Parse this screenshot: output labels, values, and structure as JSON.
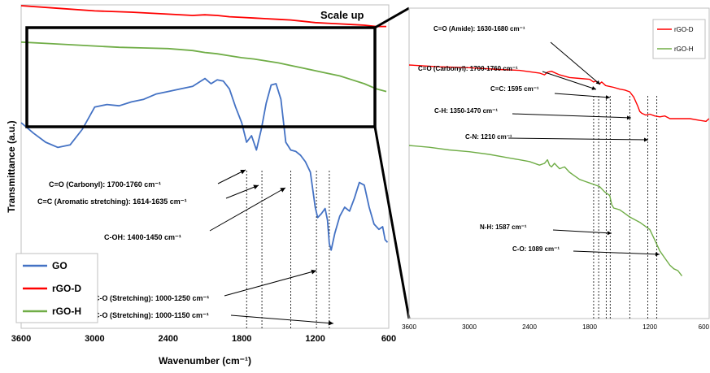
{
  "chart_data": [
    {
      "type": "line",
      "panel": "main",
      "xlabel": "Wavenumber (cm⁻¹)",
      "ylabel": "Transmittance (a.u.)",
      "xlim": [
        3600,
        600
      ],
      "x_ticks": [
        "3600",
        "3000",
        "2400",
        "1800",
        "1200",
        "600"
      ],
      "legend_position": "bottom-left",
      "series": [
        {
          "name": "GO",
          "color": "#4472C4",
          "x": [
            3600,
            3500,
            3400,
            3300,
            3200,
            3100,
            3000,
            2900,
            2800,
            2700,
            2600,
            2500,
            2400,
            2300,
            2200,
            2150,
            2100,
            2050,
            2000,
            1950,
            1900,
            1850,
            1800,
            1760,
            1720,
            1680,
            1640,
            1600,
            1560,
            1520,
            1480,
            1440,
            1400,
            1360,
            1320,
            1280,
            1240,
            1200,
            1180,
            1150,
            1120,
            1100,
            1085,
            1070,
            1040,
            1000,
            960,
            920,
            880,
            840,
            800,
            760,
            720,
            680,
            650,
            630,
            610
          ],
          "y": [
            0.4,
            0.32,
            0.25,
            0.21,
            0.23,
            0.35,
            0.52,
            0.54,
            0.53,
            0.56,
            0.58,
            0.62,
            0.64,
            0.66,
            0.68,
            0.71,
            0.74,
            0.7,
            0.73,
            0.72,
            0.66,
            0.52,
            0.4,
            0.25,
            0.3,
            0.19,
            0.35,
            0.55,
            0.69,
            0.7,
            0.58,
            0.25,
            0.19,
            0.18,
            0.15,
            0.1,
            0.02,
            -0.25,
            -0.33,
            -0.3,
            -0.26,
            -0.35,
            -0.53,
            -0.58,
            -0.45,
            -0.32,
            -0.25,
            -0.28,
            -0.18,
            -0.06,
            -0.08,
            -0.25,
            -0.38,
            -0.42,
            -0.4,
            -0.5,
            -0.52
          ]
        },
        {
          "name": "rGO-D",
          "color": "#FF0000",
          "x": [
            3600,
            3300,
            3000,
            2700,
            2400,
            2200,
            2100,
            2000,
            1900,
            1800,
            1700,
            1600,
            1500,
            1400,
            1300,
            1200,
            1100,
            1000,
            900,
            800,
            700,
            620
          ],
          "y": [
            1.3,
            1.28,
            1.26,
            1.25,
            1.235,
            1.225,
            1.23,
            1.225,
            1.215,
            1.21,
            1.205,
            1.2,
            1.195,
            1.19,
            1.18,
            1.17,
            1.165,
            1.16,
            1.155,
            1.15,
            1.14,
            1.14
          ]
        },
        {
          "name": "rGO-H",
          "color": "#70AD47",
          "x": [
            3600,
            3400,
            3200,
            3000,
            2800,
            2600,
            2400,
            2200,
            2100,
            2000,
            1900,
            1800,
            1700,
            1600,
            1500,
            1400,
            1300,
            1200,
            1100,
            1000,
            900,
            800,
            700,
            620
          ],
          "y": [
            1.02,
            1.01,
            1.0,
            0.99,
            0.98,
            0.975,
            0.97,
            0.955,
            0.94,
            0.93,
            0.915,
            0.9,
            0.89,
            0.875,
            0.86,
            0.84,
            0.82,
            0.8,
            0.78,
            0.76,
            0.73,
            0.7,
            0.66,
            0.64
          ]
        }
      ],
      "annotations": [
        {
          "text": "C=O (Carbonyl): 1700-1760 cm⁻¹",
          "wavenumber": 1730
        },
        {
          "text": "C=C (Aromatic stretching): 1614-1635 cm⁻¹",
          "wavenumber": 1625
        },
        {
          "text": "C-OH: 1400-1450 cm⁻¹",
          "wavenumber": 1425
        },
        {
          "text": "C-O (Stretching): 1000-1250 cm⁻¹",
          "wavenumber": 1180
        },
        {
          "text": "C-O (Stretching): 1000-1150 cm⁻¹",
          "wavenumber": 1090
        }
      ],
      "scale_label": "Scale up"
    },
    {
      "type": "line",
      "panel": "inset",
      "xlim": [
        3600,
        600
      ],
      "x_ticks": [
        "3600",
        "3000",
        "2400",
        "1800",
        "1200",
        "600"
      ],
      "legend_position": "top-right",
      "series": [
        {
          "name": "rGO-D",
          "color": "#FF0000",
          "x": [
            3600,
            3300,
            3000,
            2700,
            2500,
            2300,
            2250,
            2220,
            2180,
            2100,
            2000,
            1900,
            1800,
            1760,
            1740,
            1700,
            1680,
            1640,
            1600,
            1560,
            1500,
            1450,
            1400,
            1360,
            1320,
            1300,
            1280,
            1240,
            1200,
            1150,
            1100,
            1050,
            1000,
            900,
            800,
            700,
            640,
            610
          ],
          "y": [
            1.0,
            0.99,
            0.985,
            0.975,
            0.97,
            0.955,
            0.945,
            0.96,
            0.965,
            0.945,
            0.93,
            0.925,
            0.92,
            0.905,
            0.91,
            0.895,
            0.905,
            0.885,
            0.88,
            0.875,
            0.865,
            0.86,
            0.85,
            0.82,
            0.77,
            0.74,
            0.73,
            0.72,
            0.725,
            0.715,
            0.71,
            0.715,
            0.7,
            0.7,
            0.7,
            0.69,
            0.685,
            0.7
          ]
        },
        {
          "name": "rGO-H",
          "color": "#70AD47",
          "x": [
            3600,
            3400,
            3200,
            3000,
            2800,
            2600,
            2500,
            2400,
            2300,
            2250,
            2220,
            2200,
            2180,
            2150,
            2100,
            2050,
            2000,
            1950,
            1900,
            1850,
            1800,
            1750,
            1700,
            1650,
            1600,
            1580,
            1560,
            1500,
            1450,
            1400,
            1300,
            1200,
            1150,
            1100,
            1050,
            1000,
            960,
            920,
            880
          ],
          "y": [
            0.55,
            0.54,
            0.525,
            0.515,
            0.5,
            0.48,
            0.47,
            0.46,
            0.44,
            0.45,
            0.47,
            0.44,
            0.43,
            0.45,
            0.42,
            0.43,
            0.4,
            0.38,
            0.36,
            0.35,
            0.34,
            0.33,
            0.32,
            0.29,
            0.27,
            0.22,
            0.2,
            0.19,
            0.17,
            0.15,
            0.12,
            0.08,
            0.02,
            -0.04,
            -0.08,
            -0.12,
            -0.14,
            -0.15,
            -0.18
          ]
        }
      ],
      "annotations": [
        {
          "text": "C=O (Amide): 1630-1680 cm⁻¹",
          "wavenumber": 1655
        },
        {
          "text": "C=O (Carbonyl): 1700-1760 cm⁻¹",
          "wavenumber": 1730
        },
        {
          "text": "C=C: 1595 cm⁻¹",
          "wavenumber": 1595
        },
        {
          "text": "C-H: 1350-1470 cm⁻¹",
          "wavenumber": 1410
        },
        {
          "text": "C-N: 1210 cm⁻¹",
          "wavenumber": 1210
        },
        {
          "text": "N-H: 1587 cm⁻¹",
          "wavenumber": 1587
        },
        {
          "text": "C-O: 1089 cm⁻¹",
          "wavenumber": 1089
        }
      ]
    }
  ]
}
